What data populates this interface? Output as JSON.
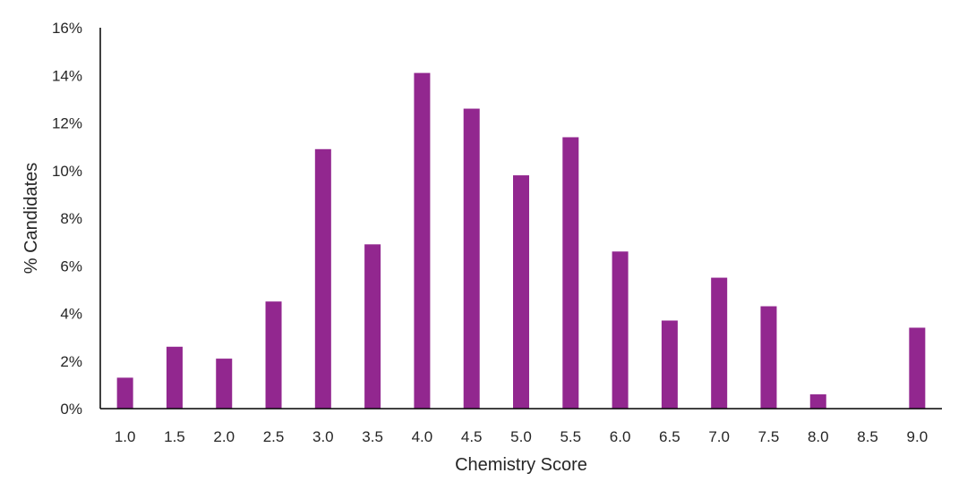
{
  "chart_data": {
    "type": "bar",
    "xlabel": "Chemistry Score",
    "ylabel": "% Candidates",
    "categories": [
      "1.0",
      "1.5",
      "2.0",
      "2.5",
      "3.0",
      "3.5",
      "4.0",
      "4.5",
      "5.0",
      "5.5",
      "6.0",
      "6.5",
      "7.0",
      "7.5",
      "8.0",
      "8.5",
      "9.0"
    ],
    "values": [
      1.3,
      2.6,
      2.1,
      4.5,
      10.9,
      6.9,
      14.1,
      12.6,
      9.8,
      11.4,
      6.6,
      3.7,
      5.5,
      4.3,
      0.6,
      0,
      3.4
    ],
    "ylim": [
      0,
      16
    ],
    "yticks": [
      0,
      2,
      4,
      6,
      8,
      10,
      12,
      14,
      16
    ],
    "ytick_labels": [
      "0%",
      "2%",
      "4%",
      "6%",
      "8%",
      "10%",
      "12%",
      "14%",
      "16%"
    ],
    "bar_color": "#92278F",
    "grid": false,
    "legend": "none"
  }
}
